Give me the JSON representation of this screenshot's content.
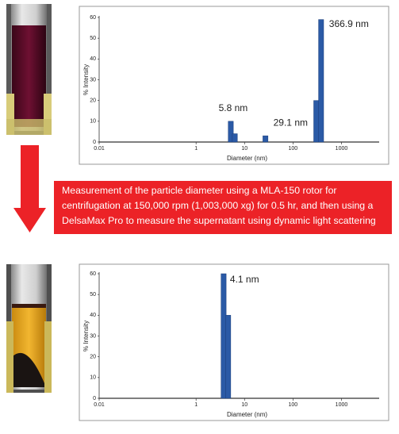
{
  "chart_data": [
    {
      "type": "bar",
      "x": [
        5.2,
        6.3,
        27,
        302,
        380
      ],
      "values": [
        10,
        4,
        3,
        20,
        59
      ],
      "color": "#2b5aa6",
      "annotations": [
        "5.8 nm",
        "29.1 nm",
        "366.9 nm"
      ],
      "xlabel": "Diameter (nm)",
      "ylabel": "% Intensity",
      "log_x": true,
      "xlim": [
        0.01,
        6000
      ],
      "xticks": [
        0.01,
        1,
        10,
        100,
        1000
      ],
      "ylim": [
        0,
        60
      ],
      "yticks": [
        0,
        10,
        20,
        30,
        40,
        50,
        60
      ]
    },
    {
      "type": "bar",
      "x": [
        3.7,
        4.6
      ],
      "values": [
        60,
        40
      ],
      "color": "#2b5aa6",
      "annotations": [
        "4.1 nm"
      ],
      "xlabel": "Diameter (nm)",
      "ylabel": "% Intensity",
      "log_x": true,
      "xlim": [
        0.01,
        6000
      ],
      "xticks": [
        0.01,
        1,
        10,
        100,
        1000
      ],
      "ylim": [
        0,
        60
      ],
      "yticks": [
        0,
        10,
        20,
        30,
        40,
        50,
        60
      ]
    }
  ],
  "caption": "Measurement of the particle diameter using a MLA-150 rotor for centrifugation at 150,000 rpm (1,003,000 xg) for 0.5 hr, and then using a DelsaMax Pro to measure the supernatant using dynamic light scattering"
}
